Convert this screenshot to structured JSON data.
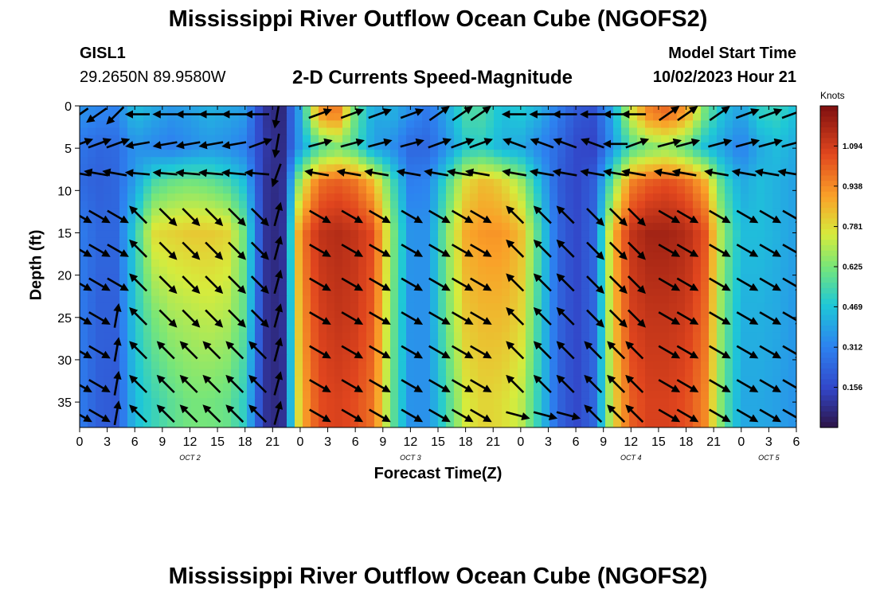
{
  "page": {
    "title": "Mississippi River Outflow Ocean Cube (NGOFS2)",
    "station_id": "GISL1",
    "station_coords": "29.2650N  89.9580W",
    "chart_title": "2-D Currents Speed-Magnitude",
    "model_start_label": "Model Start Time",
    "model_start_value": "10/02/2023 Hour 21",
    "next_title": "Mississippi River Outflow Ocean Cube (NGOFS2)"
  },
  "chart_data": {
    "type": "heatmap",
    "xlabel": "Forecast Time(Z)",
    "ylabel": "Depth (ft)",
    "x_start_hour": 0,
    "x_end_hour": 78,
    "x_tick_labels": [
      "0",
      "3",
      "6",
      "9",
      "12",
      "15",
      "18",
      "21",
      "0",
      "3",
      "6",
      "9",
      "12",
      "15",
      "18",
      "21",
      "0",
      "3",
      "6",
      "9",
      "12",
      "15",
      "18",
      "21",
      "0",
      "3",
      "6"
    ],
    "date_labels": [
      {
        "hour": 12,
        "label": "OCT 2"
      },
      {
        "hour": 36,
        "label": "OCT 3"
      },
      {
        "hour": 60,
        "label": "OCT 4"
      },
      {
        "hour": 75,
        "label": "OCT 5"
      }
    ],
    "ylim": [
      0,
      38
    ],
    "y_reversed": true,
    "y_ticks": [
      0,
      5,
      10,
      15,
      20,
      25,
      30,
      35
    ],
    "colorbar": {
      "title": "Knots",
      "min": 0,
      "max": 1.25,
      "tick_values": [
        1.094,
        0.938,
        0.781,
        0.625,
        0.469,
        0.312,
        0.156
      ],
      "tick_labels": [
        "1.094",
        "0.938",
        "0.781",
        "0.625",
        "0.469",
        "0.312",
        "0.156"
      ]
    },
    "speed_knots_by_hour": {
      "hours": [
        0,
        2,
        4,
        6,
        8,
        10,
        12,
        14,
        16,
        18,
        20,
        22,
        24,
        26,
        28,
        30,
        32,
        34,
        36,
        38,
        40,
        42,
        44,
        46,
        48,
        50,
        52,
        54,
        56,
        58,
        60,
        62,
        64,
        66,
        68,
        70,
        72,
        74,
        76,
        78
      ],
      "depths_ft": [
        1,
        5,
        9,
        15,
        25,
        35
      ],
      "values": [
        [
          0.35,
          0.32,
          0.31,
          0.45,
          0.4,
          0.36,
          0.38,
          0.42,
          0.4,
          0.37,
          0.1,
          0.05,
          0.4,
          0.9,
          0.98,
          0.6,
          0.4,
          0.42,
          0.34,
          0.28,
          0.4,
          0.55,
          0.55,
          0.45,
          0.48,
          0.42,
          0.3,
          0.2,
          0.18,
          0.4,
          0.75,
          0.95,
          1.0,
          0.9,
          0.62,
          0.45,
          0.38,
          0.5,
          0.52,
          0.45
        ],
        [
          0.28,
          0.24,
          0.25,
          0.35,
          0.32,
          0.3,
          0.33,
          0.36,
          0.34,
          0.3,
          0.12,
          0.06,
          0.38,
          0.55,
          0.62,
          0.55,
          0.38,
          0.34,
          0.24,
          0.24,
          0.35,
          0.48,
          0.5,
          0.42,
          0.4,
          0.32,
          0.25,
          0.16,
          0.14,
          0.36,
          0.55,
          0.62,
          0.65,
          0.58,
          0.45,
          0.38,
          0.3,
          0.4,
          0.45,
          0.4
        ],
        [
          0.25,
          0.22,
          0.24,
          0.38,
          0.55,
          0.6,
          0.62,
          0.6,
          0.55,
          0.45,
          0.1,
          0.06,
          0.7,
          0.98,
          1.02,
          0.98,
          0.85,
          0.55,
          0.3,
          0.32,
          0.55,
          0.78,
          0.85,
          0.8,
          0.68,
          0.45,
          0.22,
          0.15,
          0.22,
          0.6,
          0.95,
          1.02,
          1.05,
          1.0,
          0.88,
          0.55,
          0.4,
          0.45,
          0.42,
          0.38
        ],
        [
          0.3,
          0.24,
          0.24,
          0.5,
          0.78,
          0.8,
          0.82,
          0.82,
          0.8,
          0.6,
          0.1,
          0.05,
          0.95,
          1.12,
          1.15,
          1.12,
          1.05,
          0.65,
          0.35,
          0.35,
          0.65,
          0.88,
          0.92,
          0.92,
          0.85,
          0.55,
          0.24,
          0.15,
          0.24,
          0.85,
          1.12,
          1.18,
          1.18,
          1.15,
          1.05,
          0.65,
          0.45,
          0.45,
          0.42,
          0.38
        ],
        [
          0.3,
          0.22,
          0.22,
          0.48,
          0.62,
          0.68,
          0.7,
          0.72,
          0.7,
          0.58,
          0.1,
          0.05,
          0.9,
          1.08,
          1.12,
          1.1,
          1.02,
          0.62,
          0.35,
          0.35,
          0.62,
          0.82,
          0.85,
          0.85,
          0.8,
          0.52,
          0.24,
          0.15,
          0.24,
          0.82,
          1.08,
          1.12,
          1.12,
          1.1,
          1.0,
          0.62,
          0.42,
          0.42,
          0.4,
          0.36
        ],
        [
          0.3,
          0.22,
          0.2,
          0.45,
          0.52,
          0.58,
          0.62,
          0.62,
          0.6,
          0.5,
          0.1,
          0.05,
          0.85,
          1.05,
          1.08,
          1.05,
          0.98,
          0.6,
          0.35,
          0.35,
          0.55,
          0.75,
          0.8,
          0.78,
          0.72,
          0.5,
          0.24,
          0.15,
          0.24,
          0.78,
          1.02,
          1.08,
          1.08,
          1.05,
          0.95,
          0.6,
          0.4,
          0.4,
          0.38,
          0.35
        ]
      ]
    },
    "arrow_rows_ft": [
      1,
      4.5,
      8,
      13,
      17,
      21,
      25,
      29,
      33,
      36.5
    ],
    "arrow_columns_hours": [
      0,
      2,
      4,
      6.5,
      9.5,
      12,
      14.5,
      17,
      19.5,
      21.5,
      26,
      29.5,
      32.5,
      36,
      39,
      41.5,
      43.5,
      47.5,
      50.5,
      53,
      56,
      58.5,
      60.5,
      64,
      66,
      69.5,
      72.5,
      75,
      77.5
    ],
    "arrow_directions_deg": [
      [
        215,
        215,
        225,
        180,
        180,
        180,
        180,
        180,
        180,
        260,
        20,
        20,
        20,
        20,
        35,
        35,
        35,
        180,
        180,
        180,
        180,
        180,
        180,
        35,
        35,
        35,
        20,
        20,
        20
      ],
      [
        20,
        20,
        20,
        190,
        190,
        190,
        190,
        190,
        20,
        260,
        15,
        15,
        15,
        15,
        20,
        20,
        20,
        160,
        160,
        160,
        160,
        180,
        20,
        15,
        15,
        15,
        15,
        15,
        15
      ],
      [
        170,
        170,
        170,
        175,
        175,
        175,
        175,
        175,
        175,
        250,
        170,
        170,
        170,
        170,
        170,
        170,
        170,
        170,
        170,
        170,
        170,
        170,
        170,
        170,
        170,
        170,
        170,
        170,
        170
      ],
      [
        330,
        330,
        330,
        135,
        315,
        315,
        315,
        315,
        315,
        75,
        330,
        330,
        330,
        330,
        330,
        330,
        330,
        135,
        135,
        135,
        315,
        315,
        315,
        330,
        330,
        330,
        330,
        330,
        330
      ],
      [
        330,
        330,
        330,
        135,
        315,
        315,
        315,
        315,
        315,
        75,
        330,
        330,
        330,
        330,
        330,
        330,
        330,
        135,
        135,
        135,
        315,
        315,
        315,
        330,
        330,
        330,
        330,
        330,
        330
      ],
      [
        330,
        330,
        330,
        135,
        315,
        315,
        315,
        315,
        315,
        75,
        330,
        330,
        330,
        330,
        330,
        330,
        330,
        135,
        135,
        135,
        315,
        315,
        315,
        330,
        330,
        330,
        330,
        330,
        330
      ],
      [
        330,
        330,
        80,
        135,
        315,
        315,
        315,
        315,
        315,
        75,
        330,
        330,
        330,
        330,
        330,
        330,
        330,
        135,
        135,
        135,
        315,
        315,
        315,
        330,
        330,
        330,
        330,
        330,
        330
      ],
      [
        330,
        330,
        80,
        135,
        135,
        135,
        135,
        135,
        135,
        75,
        330,
        330,
        330,
        330,
        330,
        330,
        330,
        135,
        135,
        135,
        135,
        135,
        135,
        330,
        330,
        330,
        330,
        330,
        330
      ],
      [
        330,
        330,
        80,
        135,
        135,
        135,
        135,
        135,
        135,
        75,
        330,
        330,
        330,
        330,
        330,
        330,
        330,
        135,
        135,
        135,
        135,
        135,
        135,
        330,
        330,
        330,
        330,
        330,
        330
      ],
      [
        330,
        330,
        80,
        135,
        135,
        135,
        135,
        135,
        135,
        75,
        330,
        330,
        330,
        330,
        330,
        330,
        330,
        345,
        345,
        345,
        135,
        135,
        135,
        330,
        330,
        330,
        330,
        330,
        330
      ]
    ]
  }
}
